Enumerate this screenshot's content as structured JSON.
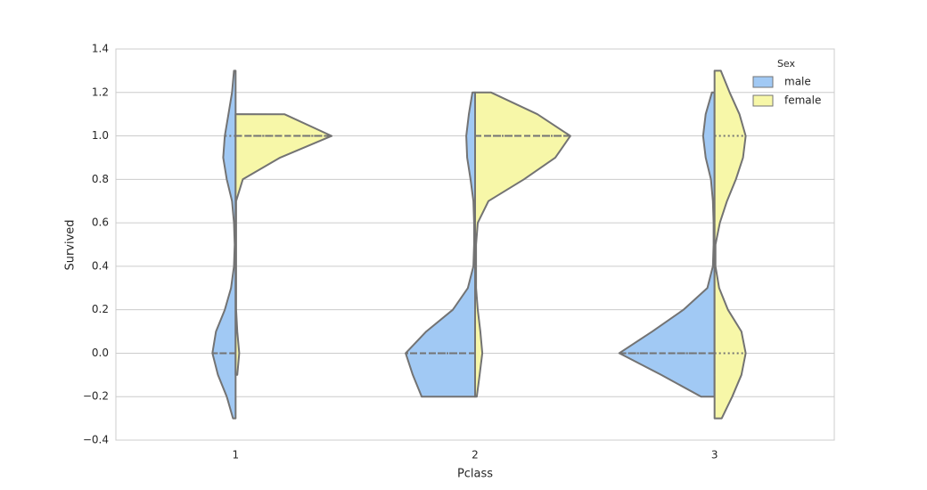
{
  "chart_data": {
    "type": "violin",
    "xlabel": "Pclass",
    "ylabel": "Survived",
    "categories": [
      "1",
      "2",
      "3"
    ],
    "ylim": [
      -0.4,
      1.4
    ],
    "yticks": [
      {
        "value": -0.4,
        "label": "−0.4"
      },
      {
        "value": -0.2,
        "label": "−0.2"
      },
      {
        "value": 0,
        "label": "0.0"
      },
      {
        "value": 0.2,
        "label": "0.2"
      },
      {
        "value": 0.4,
        "label": "0.4"
      },
      {
        "value": 0.6,
        "label": "0.6"
      },
      {
        "value": 0.8,
        "label": "0.8"
      },
      {
        "value": 1,
        "label": "1.0"
      },
      {
        "value": 1.2,
        "label": "1.2"
      },
      {
        "value": 1.4,
        "label": "1.4"
      }
    ],
    "grid": true,
    "legend_title": "Sex",
    "legend_position": "upper right",
    "y_grid": [
      -0.4,
      -0.3,
      -0.2,
      -0.1,
      0,
      0.1,
      0.2,
      0.3,
      0.4,
      0.5,
      0.6,
      0.7,
      0.8,
      0.9,
      1.0,
      1.1,
      1.2,
      1.3,
      1.4
    ],
    "series": [
      {
        "name": "male",
        "color": "#a1c9f4",
        "side": "left",
        "profiles": [
          [
            null,
            0.011,
            0.037,
            0.074,
            0.097,
            0.082,
            0.045,
            0.019,
            0.007,
            0.004,
            0.007,
            0.015,
            0.037,
            0.052,
            0.045,
            0.03,
            0.015,
            0.007,
            null
          ],
          [
            null,
            null,
            0.223,
            0.26,
            0.29,
            0.204,
            0.093,
            0.03,
            0.007,
            0.004,
            0.004,
            0.007,
            0.019,
            0.033,
            0.037,
            0.026,
            0.011,
            null,
            null
          ],
          [
            null,
            null,
            0.056,
            0.223,
            0.398,
            0.26,
            0.13,
            0.03,
            0.007,
            0.004,
            0.004,
            0.007,
            0.015,
            0.037,
            0.048,
            0.037,
            0.011,
            null,
            null
          ]
        ],
        "quartiles": [
          [
            0,
            0,
            1
          ],
          [
            0,
            0,
            0
          ],
          [
            0,
            0,
            0
          ]
        ]
      },
      {
        "name": "female",
        "color": "#f7f7a8",
        "side": "right",
        "profiles": [
          [
            null,
            null,
            null,
            0.007,
            0.015,
            0.007,
            0.002,
            0.002,
            0.002,
            0.002,
            0.002,
            0.002,
            0.03,
            0.186,
            0.401,
            0.204,
            null,
            null,
            null
          ],
          [
            null,
            null,
            0.007,
            0.019,
            0.03,
            0.022,
            0.011,
            0.004,
            0.004,
            0.004,
            0.011,
            0.056,
            0.204,
            0.335,
            0.398,
            0.26,
            0.067,
            null,
            null
          ],
          [
            null,
            0.03,
            0.074,
            0.112,
            0.13,
            0.112,
            0.056,
            0.019,
            0.004,
            0.004,
            0.022,
            0.052,
            0.089,
            0.119,
            0.13,
            0.104,
            0.063,
            0.026,
            null
          ]
        ],
        "quartiles": [
          [
            1,
            1,
            1
          ],
          [
            1,
            1,
            1
          ],
          [
            0,
            0.5,
            1
          ]
        ]
      }
    ]
  }
}
